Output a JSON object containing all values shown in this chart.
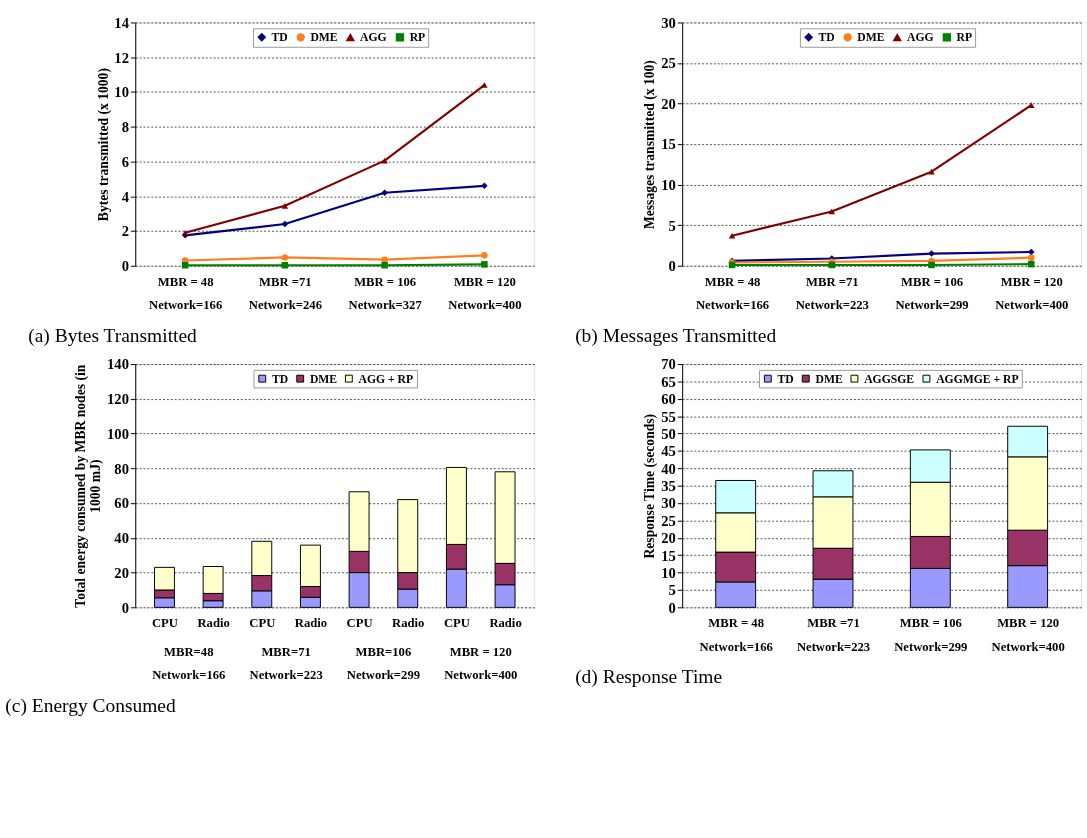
{
  "chart_data": [
    {
      "type": "line",
      "title": "(a) Bytes Transmitted",
      "ylabel": "Bytes transmitted (x 1000)",
      "categories": [
        "MBR = 48\nNetwork=166",
        "MBR =71\nNetwork=246",
        "MBR = 106\nNetwork=327",
        "MBR = 120\nNetwork=400"
      ],
      "series": [
        {
          "name": "TD",
          "color": "#000080",
          "marker": "diamond",
          "values": [
            1.75,
            2.4,
            4.2,
            4.6
          ]
        },
        {
          "name": "DME",
          "color": "#ff7f1f",
          "marker": "circle",
          "values": [
            0.3,
            0.48,
            0.35,
            0.6
          ]
        },
        {
          "name": "AGG",
          "color": "#800000",
          "marker": "triangle",
          "values": [
            1.9,
            3.45,
            6.05,
            10.4
          ]
        },
        {
          "name": "RP",
          "color": "#008000",
          "marker": "square",
          "values": [
            0.03,
            0.03,
            0.03,
            0.08
          ]
        }
      ],
      "ylim": [
        0,
        14
      ],
      "yticks": [
        0,
        2,
        4,
        6,
        8,
        10,
        12,
        14
      ],
      "grid": "y",
      "legend": "top",
      "line_style": "solid"
    },
    {
      "type": "line",
      "title": "(b) Messages Transmitted",
      "ylabel": "Messages transmitted (x 100)",
      "categories": [
        "MBR = 48\nNetwork=166",
        "MBR =71\nNetwork=223",
        "MBR = 106\nNetwork=299",
        "MBR = 120\nNetwork=400"
      ],
      "series": [
        {
          "name": "TD",
          "color": "#000080",
          "marker": "diamond",
          "values": [
            0.6,
            0.9,
            1.5,
            1.7
          ]
        },
        {
          "name": "DME",
          "color": "#ff7f1f",
          "marker": "circle",
          "values": [
            0.4,
            0.5,
            0.6,
            1.0
          ]
        },
        {
          "name": "AGG",
          "color": "#800000",
          "marker": "triangle",
          "values": [
            3.7,
            6.7,
            11.6,
            19.8
          ]
        },
        {
          "name": "RP",
          "color": "#008000",
          "marker": "square",
          "values": [
            0.1,
            0.1,
            0.1,
            0.2
          ]
        }
      ],
      "ylim": [
        0,
        30
      ],
      "yticks": [
        0,
        5,
        10,
        15,
        20,
        25,
        30
      ],
      "grid": "y",
      "legend": "top",
      "line_style": "solid"
    },
    {
      "type": "bar",
      "stacked": true,
      "title": "(c) Energy Consumed",
      "ylabel": "Total energy consumed by MBR nodes (in 1000 mJ)",
      "categories": [
        "CPU",
        "Radio",
        "CPU",
        "Radio",
        "CPU",
        "Radio",
        "CPU",
        "Radio"
      ],
      "annotations": [
        "MBR=48\nNetwork=166",
        "MBR=71\nNetwork=223",
        "MBR=106\nNetwork=299",
        "MBR = 120\nNetwork=400"
      ],
      "series": [
        {
          "name": "TD",
          "color": "#9999ff",
          "values": [
            5.5,
            3.8,
            9.5,
            5.8,
            20,
            10.5,
            22,
            13
          ]
        },
        {
          "name": "DME",
          "color": "#993366",
          "values": [
            4.5,
            4.2,
            8.8,
            6.2,
            12.2,
            9.5,
            14.2,
            12.3
          ]
        },
        {
          "name": "AGG + RP",
          "color": "#ffffcc",
          "values": [
            13,
            15.5,
            19.7,
            23.8,
            34.3,
            42,
            44.3,
            52.7
          ]
        }
      ],
      "ylim": [
        0,
        140
      ],
      "yticks": [
        0,
        20,
        40,
        60,
        80,
        100,
        120,
        140
      ],
      "grid": "y",
      "legend": "top"
    },
    {
      "type": "bar",
      "stacked": true,
      "title": "(d) Response Time",
      "ylabel": "Response Time (seconds)",
      "categories": [
        "MBR = 48\nNetwork=166",
        "MBR =71\nNetwork=223",
        "MBR = 106\nNetwork=299",
        "MBR = 120\nNetwork=400"
      ],
      "series": [
        {
          "name": "TD",
          "color": "#9999ff",
          "values": [
            7.3,
            8.1,
            11.2,
            12
          ]
        },
        {
          "name": "DME",
          "color": "#993366",
          "values": [
            8.6,
            8.9,
            9.2,
            10.2
          ]
        },
        {
          "name": "AGGSGE",
          "color": "#ffffcc",
          "values": [
            11.3,
            14.8,
            15.6,
            21.1
          ]
        },
        {
          "name": "AGGMGE + RP",
          "color": "#ccffff",
          "values": [
            9.3,
            7.5,
            9.3,
            8.8
          ]
        }
      ],
      "ylim": [
        0,
        70
      ],
      "yticks": [
        0,
        5,
        10,
        15,
        20,
        25,
        30,
        35,
        40,
        45,
        50,
        55,
        60,
        65,
        70
      ],
      "grid": "y",
      "legend": "top"
    }
  ]
}
